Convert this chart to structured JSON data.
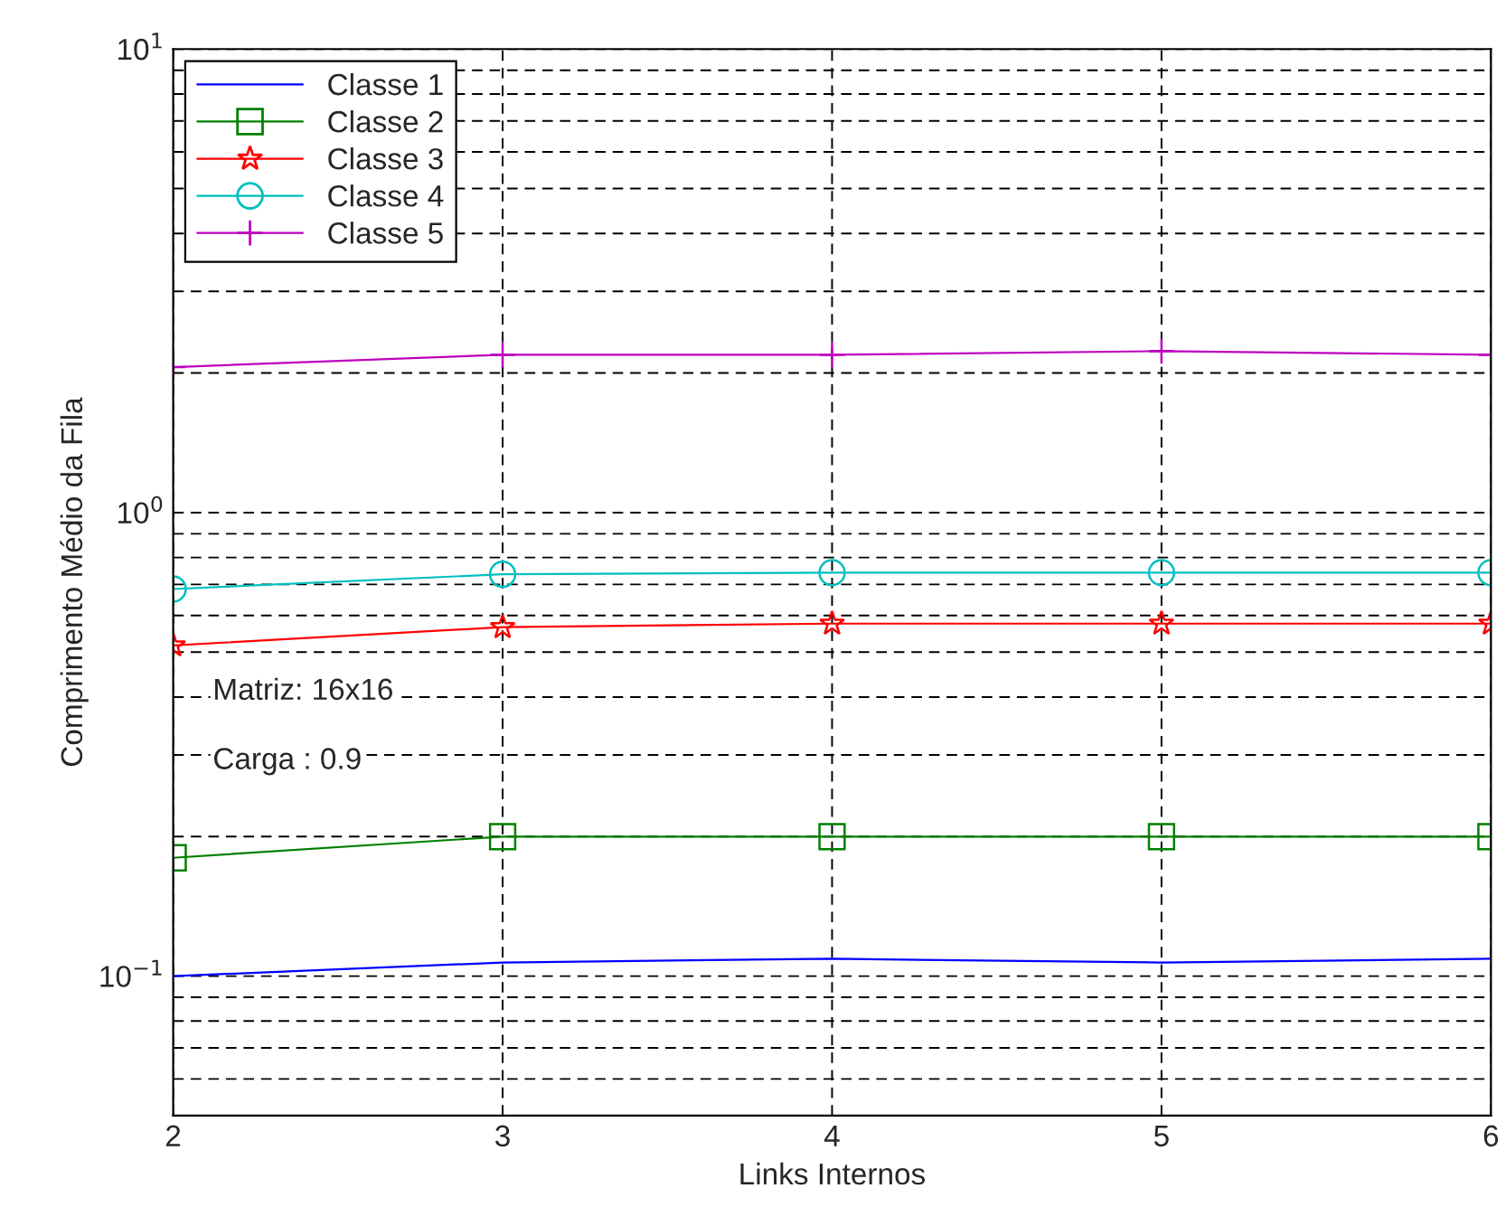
{
  "chart_data": {
    "type": "line",
    "xlabel": "Links Internos",
    "ylabel": "Comprimento Médio da Fila",
    "x": [
      2,
      3,
      4,
      5,
      6
    ],
    "series": [
      {
        "name": "Classe 1",
        "color": "#0000ff",
        "marker": "none",
        "values": [
          0.1,
          0.107,
          0.109,
          0.107,
          0.109
        ]
      },
      {
        "name": "Classe 2",
        "color": "#008000",
        "marker": "square",
        "values": [
          0.18,
          0.2,
          0.2,
          0.2,
          0.2
        ]
      },
      {
        "name": "Classe 3",
        "color": "#ff0000",
        "marker": "star",
        "values": [
          0.517,
          0.566,
          0.576,
          0.576,
          0.576
        ]
      },
      {
        "name": "Classe 4",
        "color": "#00bfbf",
        "marker": "circle",
        "values": [
          0.684,
          0.736,
          0.742,
          0.742,
          0.742
        ]
      },
      {
        "name": "Classe 5",
        "color": "#bf00bf",
        "marker": "cross",
        "values": [
          2.06,
          2.19,
          2.19,
          2.23,
          2.19
        ]
      }
    ],
    "log": "y",
    "xlim": [
      2,
      6
    ],
    "xticks": [
      2,
      3,
      4,
      5,
      6
    ],
    "ylim": [
      0.05,
      10
    ],
    "yticks": [
      {
        "value": 0.1,
        "label": "10$^{−1}$"
      },
      {
        "value": 1,
        "label": "10$^{0}$"
      },
      {
        "value": 10,
        "label": "10$^{1}$"
      }
    ],
    "grid": true,
    "legend": "top left",
    "line_style": "solid",
    "annotations": [
      "Matriz: 16x16",
      "Carga : 0.9"
    ]
  }
}
